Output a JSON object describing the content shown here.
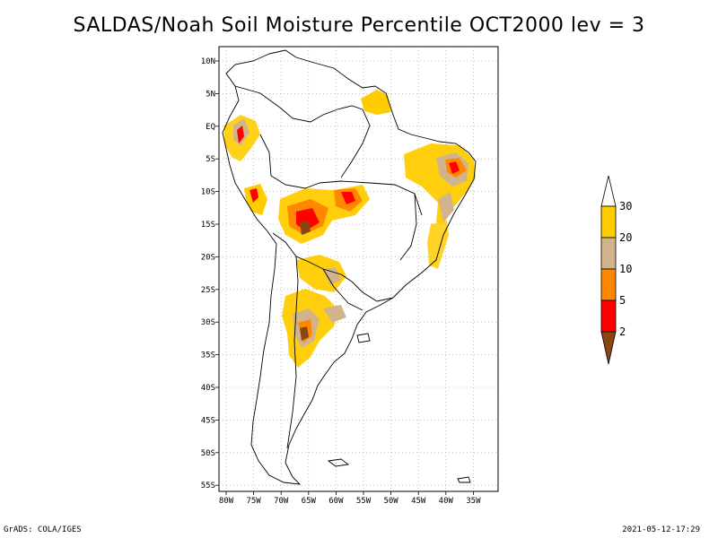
{
  "title": "SALDAS/Noah Soil Moisture Percentile OCT2000 lev = 3",
  "footer": {
    "left": "GrADS: COLA/IGES",
    "right": "2021-05-12-17:29"
  },
  "map": {
    "lat_ticks": [
      "10N",
      "5N",
      "EQ",
      "5S",
      "10S",
      "15S",
      "20S",
      "25S",
      "30S",
      "35S",
      "40S",
      "45S",
      "50S",
      "55S"
    ],
    "lon_ticks": [
      "80W",
      "75W",
      "70W",
      "65W",
      "60W",
      "55W",
      "50W",
      "45W",
      "40W",
      "35W"
    ],
    "lon_range": [
      -81,
      -32
    ],
    "lat_range": [
      -56,
      12
    ],
    "grid": "dotted"
  },
  "legend": {
    "labels": [
      "30",
      "20",
      "10",
      "5",
      "2"
    ],
    "colors": {
      "above_30": "#ffffff",
      "20_30": "#ffcc00",
      "10_20": "#d2b48c",
      "5_10": "#ff8800",
      "2_5": "#ff0000",
      "below_2": "#8b4513"
    }
  }
}
